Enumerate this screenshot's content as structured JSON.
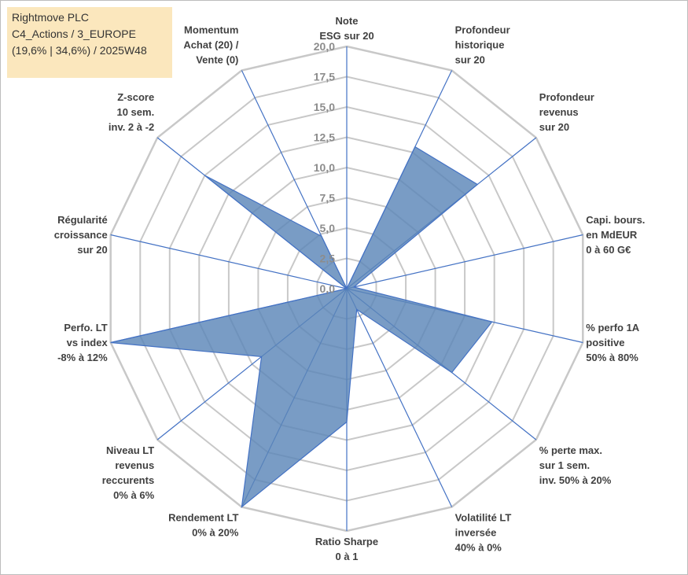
{
  "title": {
    "line1": "Rightmove PLC",
    "line2": "C4_Actions / 3_EUROPE",
    "line3": "(19,6% | 34,6%) / 2025W48"
  },
  "colors": {
    "fill": "#5b86b8",
    "stroke": "#4472c4",
    "grid": "#c8c8c8",
    "title_bg": "#fbe7bd"
  },
  "chart_data": {
    "type": "radar",
    "r_min": 0,
    "r_max": 20,
    "grid_step": 2.5,
    "tick_labels": [
      "0,0",
      "2,5",
      "5,0",
      "7,5",
      "10,0",
      "12,5",
      "15,0",
      "17,5",
      "20,0"
    ],
    "axes": [
      {
        "label": [
          "Note",
          "ESG sur 20"
        ],
        "value": 0
      },
      {
        "label": [
          "Profondeur",
          "historique",
          "sur 20"
        ],
        "value": 13.0
      },
      {
        "label": [
          "Profondeur",
          "revenus",
          "sur 20"
        ],
        "value": 13.8
      },
      {
        "label": [
          "Capi. bours.",
          "en MdEUR",
          "0 à 60 G€"
        ],
        "value": 0.6
      },
      {
        "label": [
          "% perfo 1A",
          "positive",
          "50% à 80%"
        ],
        "value": 12.3
      },
      {
        "label": [
          "% perte max.",
          "sur 1 sem.",
          "inv. 50% à 20%"
        ],
        "value": 11.1
      },
      {
        "label": [
          "Volatilité LT",
          "inversée",
          "40% à 0%"
        ],
        "value": 1.9
      },
      {
        "label": [
          "Ratio Sharpe",
          "0 à 1"
        ],
        "value": 11.0
      },
      {
        "label": [
          "Rendement LT",
          "0% à 20%"
        ],
        "value": 20.0
      },
      {
        "label": [
          "Niveau LT",
          "revenus",
          "reccurents",
          "0% à 6%"
        ],
        "value": 9.0
      },
      {
        "label": [
          "Perfo. LT",
          "vs index",
          "-8% à 12%"
        ],
        "value": 20.0
      },
      {
        "label": [
          "Régularité",
          "croissance",
          "sur 20"
        ],
        "value": 0
      },
      {
        "label": [
          "Z-score",
          "10 sem.",
          "inv. 2 à -2"
        ],
        "value": 15.0
      },
      {
        "label": [
          "Momentum",
          "Achat (20) /",
          "Vente (0)"
        ],
        "value": 4.8
      }
    ]
  }
}
